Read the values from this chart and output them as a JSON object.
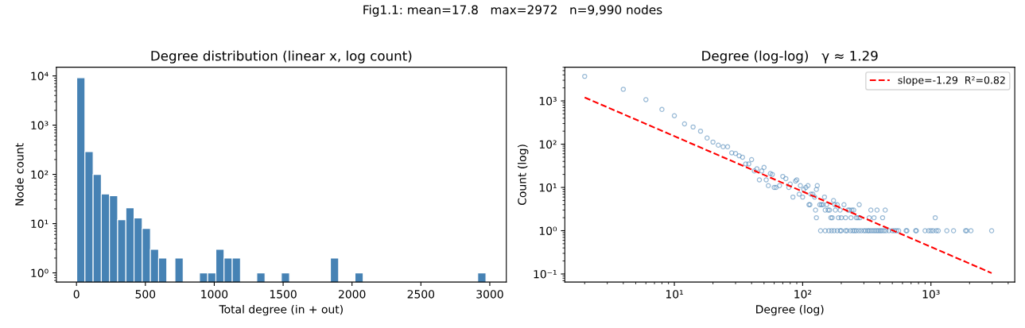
{
  "chart_data": [
    {
      "type": "histogram",
      "title": "Degree distribution (linear x, log count)",
      "xlabel": "Total degree (in + out)",
      "ylabel": "Node count",
      "annotations": [
        "Fig1.1: mean=17.8   max=2972   n=9,990 nodes"
      ],
      "color": "#4682b4",
      "log": "y",
      "grid": false,
      "legend": false,
      "bins": [
        2,
        61.4,
        120.8,
        180.2,
        239.6,
        299,
        358.4,
        417.8,
        477.2,
        536.6,
        596,
        655.4,
        714.8,
        774.2,
        833.6,
        893,
        952.4,
        1011.8,
        1071.2,
        1130.6,
        1190,
        1249.4,
        1308.8,
        1368.2,
        1427.6,
        1487,
        1546.4,
        1605.8,
        1665.2,
        1724.6,
        1784,
        1843.4,
        1902.8,
        1962.2,
        2021.6,
        2081,
        2140.4,
        2199.8,
        2259.2,
        2318.6,
        2378,
        2437.4,
        2496.8,
        2556.2,
        2615.6,
        2675,
        2734.4,
        2793.8,
        2853.2,
        2912.6,
        2972
      ],
      "values": [
        9200,
        290,
        100,
        40,
        37,
        12,
        21,
        13,
        8,
        3,
        2,
        null,
        2,
        null,
        null,
        1,
        1,
        3,
        2,
        2,
        null,
        null,
        1,
        null,
        null,
        1,
        null,
        null,
        null,
        null,
        null,
        2,
        null,
        null,
        1,
        null,
        null,
        null,
        null,
        null,
        null,
        null,
        null,
        null,
        null,
        null,
        null,
        null,
        null,
        1
      ],
      "xlim": [
        -146,
        3120
      ],
      "ylim": [
        0.65,
        15000
      ],
      "xticks": [
        0,
        500,
        1000,
        1500,
        2000,
        2500,
        3000
      ],
      "yticks": [
        {
          "value": 1,
          "label": "10⁰"
        },
        {
          "value": 10,
          "label": "10¹"
        },
        {
          "value": 100,
          "label": "10²"
        },
        {
          "value": 1000,
          "label": "10³"
        },
        {
          "value": 10000,
          "label": "10⁴"
        }
      ]
    },
    {
      "type": "scatter",
      "title": "Degree (log-log)   γ ≈ 1.29",
      "xlabel": "Degree (log)",
      "ylabel": "Count (log)",
      "log": "xy",
      "grid": false,
      "legend": "top right",
      "marker": "circle",
      "xlim": [
        1.4,
        4500
      ],
      "ylim": [
        0.065,
        6000
      ],
      "xticks": [
        {
          "value": 10,
          "label": "10¹"
        },
        {
          "value": 100,
          "label": "10²"
        },
        {
          "value": 1000,
          "label": "10³"
        }
      ],
      "yticks": [
        {
          "value": 0.1,
          "label": "10⁻¹"
        },
        {
          "value": 1,
          "label": "10⁰"
        },
        {
          "value": 10,
          "label": "10¹"
        },
        {
          "value": 100,
          "label": "10²"
        },
        {
          "value": 1000,
          "label": "10³"
        }
      ],
      "series": [
        {
          "type": "scatter",
          "color": "#4682b4",
          "x": [
            2,
            4,
            6,
            8,
            10,
            12,
            14,
            16,
            18,
            20,
            22,
            24,
            26,
            28,
            30,
            32,
            34,
            36,
            38,
            40,
            42,
            44,
            46,
            48,
            50,
            52,
            54,
            56,
            58,
            60,
            62,
            66,
            70,
            74,
            78,
            80,
            84,
            88,
            90,
            94,
            96,
            100,
            102,
            106,
            110,
            116,
            120,
            124,
            128,
            130,
            112,
            114,
            126,
            128,
            136,
            140,
            144,
            148,
            150,
            154,
            158,
            162,
            166,
            170,
            174,
            178,
            180,
            186,
            190,
            196,
            200,
            210,
            216,
            226,
            232,
            238,
            242,
            250,
            262,
            270,
            276,
            280,
            330,
            340,
            360,
            380,
            420,
            440,
            1080,
            138,
            150,
            160,
            168,
            176,
            186,
            196,
            200,
            216,
            222,
            236,
            246,
            254,
            262,
            274,
            286,
            300,
            310,
            322,
            330,
            342,
            354,
            366,
            378,
            390,
            402,
            414,
            430,
            446,
            470,
            500,
            520,
            540,
            560,
            640,
            650,
            760,
            770,
            900,
            960,
            1000,
            1040,
            1100,
            1140,
            1330,
            1500,
            1860,
            1900,
            2050,
            2972
          ],
          "values": [
            3700,
            1860,
            1070,
            635,
            455,
            295,
            250,
            200,
            139,
            112,
            95,
            87,
            87,
            63,
            61,
            54,
            50,
            35,
            35,
            44,
            24,
            27,
            15,
            24,
            29,
            15,
            11,
            21,
            20,
            10,
            10,
            11,
            18,
            16,
            10,
            12,
            6,
            14,
            15,
            7,
            11,
            6,
            9,
            10,
            11,
            7,
            7,
            6,
            9,
            11,
            4,
            4,
            3,
            2,
            4,
            4,
            4,
            6,
            3,
            4,
            3,
            3,
            2,
            2,
            5,
            4,
            3,
            4,
            2,
            3,
            2,
            4,
            2,
            3,
            3,
            2,
            3,
            3,
            2,
            2,
            4,
            2,
            2,
            3,
            2,
            3,
            2,
            3,
            2,
            1,
            1,
            1,
            1,
            1,
            1,
            1,
            1,
            1,
            1,
            1,
            1,
            1,
            1,
            1,
            1,
            1,
            1,
            1,
            1,
            1,
            1,
            1,
            1,
            1,
            1,
            1,
            1,
            1,
            1,
            1,
            1,
            1,
            1,
            1,
            1,
            1,
            1,
            1,
            1,
            1,
            1,
            1,
            1,
            1,
            1,
            1,
            1,
            1,
            1
          ]
        },
        {
          "type": "line",
          "name": "slope=-1.29  R²=0.82",
          "color": "#ff0000",
          "line_style": "dashed",
          "marker": "none",
          "x": [
            2,
            2972
          ],
          "values": [
            1200,
            0.105
          ]
        }
      ]
    }
  ]
}
